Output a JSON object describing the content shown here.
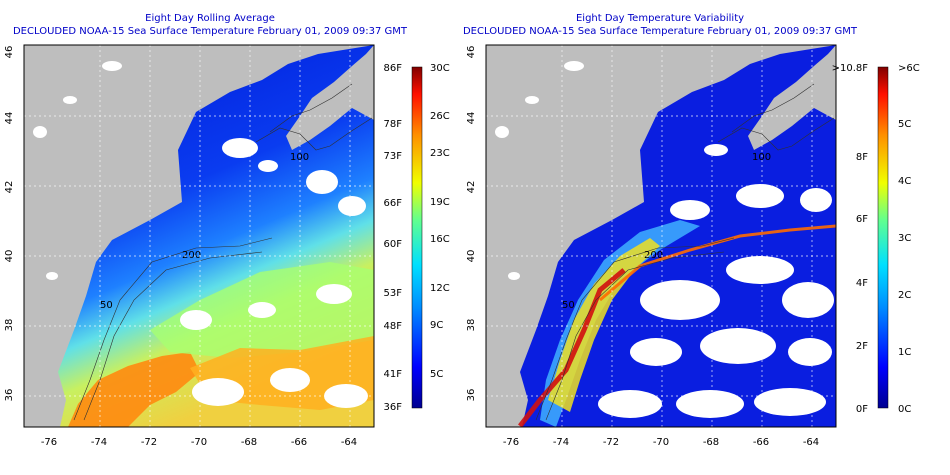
{
  "panels": [
    {
      "title_line1": "Eight Day Rolling Average",
      "title_line2": "DECLOUDED NOAA-15 Sea Surface Temperature February 01, 2009 09:37 GMT",
      "kind": "sst",
      "colorbar": {
        "left_labels": [
          "86F",
          "78F",
          "73F",
          "66F",
          "60F",
          "53F",
          "48F",
          "41F",
          "36F"
        ],
        "right_labels": [
          "30C",
          "26C",
          "23C",
          "19C",
          "16C",
          "12C",
          "9C",
          "5C"
        ]
      }
    },
    {
      "title_line1": "Eight Day Temperature Variability",
      "title_line2": "DECLOUDED NOAA-15 Sea Surface Temperature February 01, 2009 09:37 GMT",
      "kind": "var",
      "colorbar": {
        "left_labels": [
          ">10.8F",
          "8F",
          "6F",
          "4F",
          "2F",
          "0F"
        ],
        "right_labels": [
          ">6C",
          "5C",
          "4C",
          "3C",
          "2C",
          "1C",
          "0C"
        ]
      }
    }
  ],
  "axes": {
    "longitude_ticks": [
      "-76",
      "-74",
      "-72",
      "-70",
      "-68",
      "-66",
      "-64"
    ],
    "latitude_ticks": [
      "46",
      "44",
      "42",
      "40",
      "38",
      "36"
    ]
  },
  "map_labels": {
    "depth_contours": [
      "100",
      "200",
      "50"
    ]
  },
  "colors": {
    "title": "#0000c8",
    "land": "#bebebe",
    "cloud": "#ffffff"
  }
}
